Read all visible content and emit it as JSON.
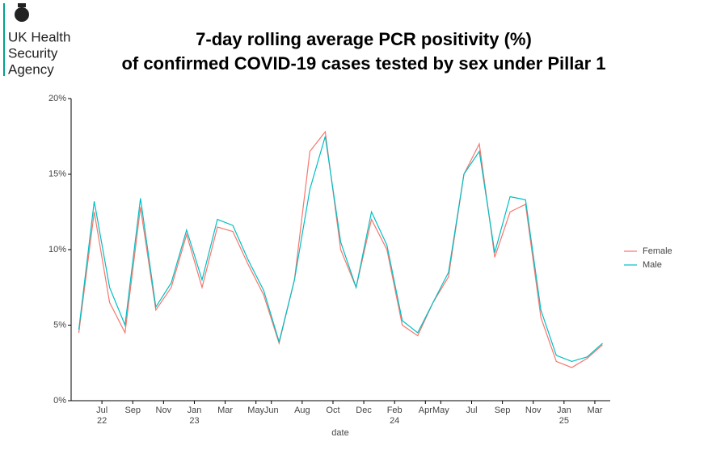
{
  "logo": {
    "lines": [
      "UK Health",
      "Security",
      "Agency"
    ]
  },
  "chart_data": {
    "type": "line",
    "title": [
      "7-day rolling average PCR positivity (%)",
      "of confirmed COVID-19 cases tested by sex under Pillar 1"
    ],
    "xlabel": "date",
    "x": [
      "2022-05",
      "2022-06",
      "2022-07",
      "2022-08",
      "2022-09",
      "2022-10",
      "2022-11",
      "2022-12",
      "2023-01",
      "2023-02",
      "2023-03",
      "2023-04",
      "2023-05",
      "2023-06",
      "2023-07",
      "2023-08",
      "2023-09",
      "2023-10",
      "2023-11",
      "2023-12",
      "2024-01",
      "2024-02",
      "2024-03",
      "2024-04",
      "2024-05",
      "2024-06",
      "2024-07",
      "2024-08",
      "2024-09",
      "2024-10",
      "2024-11",
      "2024-12",
      "2025-01",
      "2025-02",
      "2025-03"
    ],
    "series": [
      {
        "name": "Female",
        "color": "#F8766D",
        "values": [
          4.5,
          12.5,
          6.5,
          4.5,
          12.8,
          6,
          7.5,
          11,
          7.5,
          11.5,
          11.2,
          9,
          7,
          3.8,
          8,
          16.5,
          17.8,
          10,
          7.5,
          12,
          10,
          5,
          4.3,
          6.5,
          8.2,
          15,
          17,
          9.5,
          12.5,
          13,
          5.5,
          2.6,
          2.2,
          2.8,
          3.7
        ]
      },
      {
        "name": "Male",
        "color": "#00BFC4",
        "values": [
          4.7,
          13.2,
          7.5,
          5,
          13.4,
          6.2,
          7.8,
          11.3,
          8,
          12,
          11.6,
          9.3,
          7.3,
          3.9,
          8,
          14,
          17.5,
          10.5,
          7.5,
          12.5,
          10.3,
          5.3,
          4.5,
          6.5,
          8.5,
          15,
          16.5,
          9.8,
          13.5,
          13.3,
          6,
          3,
          2.6,
          2.9,
          3.8
        ]
      }
    ],
    "xlim": [
      "2022-05",
      "2025-04"
    ],
    "xticks": [
      {
        "value": "2022-07",
        "label": "Jul",
        "year": "22"
      },
      {
        "value": "2022-09",
        "label": "Sep"
      },
      {
        "value": "2022-11",
        "label": "Nov"
      },
      {
        "value": "2023-01",
        "label": "Jan",
        "year": "23"
      },
      {
        "value": "2023-03",
        "label": "Mar"
      },
      {
        "value": "2023-05",
        "label": "May"
      },
      {
        "value": "2023-06",
        "label": "Jun"
      },
      {
        "value": "2023-08",
        "label": "Aug"
      },
      {
        "value": "2023-10",
        "label": "Oct"
      },
      {
        "value": "2023-12",
        "label": "Dec"
      },
      {
        "value": "2024-02",
        "label": "Feb",
        "year": "24"
      },
      {
        "value": "2024-04",
        "label": "Apr"
      },
      {
        "value": "2024-05",
        "label": "May"
      },
      {
        "value": "2024-07",
        "label": "Jul"
      },
      {
        "value": "2024-09",
        "label": "Sep"
      },
      {
        "value": "2024-11",
        "label": "Nov"
      },
      {
        "value": "2025-01",
        "label": "Jan",
        "year": "25"
      },
      {
        "value": "2025-03",
        "label": "Mar"
      }
    ],
    "ylim": [
      0,
      20
    ],
    "yticks": [
      {
        "value": 0,
        "label": "0%"
      },
      {
        "value": 5,
        "label": "5%"
      },
      {
        "value": 10,
        "label": "10%"
      },
      {
        "value": 15,
        "label": "15%"
      },
      {
        "value": 20,
        "label": "20%"
      }
    ],
    "grid": false,
    "legend": "right"
  }
}
